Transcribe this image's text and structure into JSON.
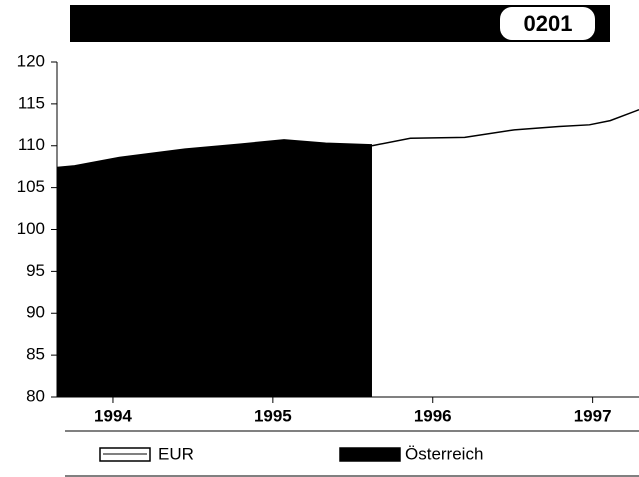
{
  "chart_data": {
    "type": "area",
    "title": "0201",
    "series": [
      {
        "name": "EUR",
        "color": "#ffffff",
        "x": [
          1995.62,
          1995.86,
          1996.2,
          1996.51,
          1996.79,
          1996.98,
          1997.11,
          1997.29
        ],
        "values": [
          110.0,
          110.9,
          111.0,
          111.9,
          112.3,
          112.5,
          113.0,
          114.3
        ]
      },
      {
        "name": "Österreich",
        "color": "#000000",
        "x": [
          1993.65,
          1993.76,
          1994.04,
          1994.45,
          1994.8,
          1995.07,
          1995.33,
          1995.62
        ],
        "values": [
          107.4,
          107.6,
          108.6,
          109.6,
          110.2,
          110.7,
          110.3,
          110.1
        ]
      }
    ],
    "xlim": [
      1993.65,
      1997.29
    ],
    "xticks": [
      1994,
      1995,
      1996,
      1997
    ],
    "ylim": [
      80,
      120
    ],
    "yticks": [
      80,
      85,
      90,
      95,
      100,
      105,
      110,
      115,
      120
    ]
  }
}
